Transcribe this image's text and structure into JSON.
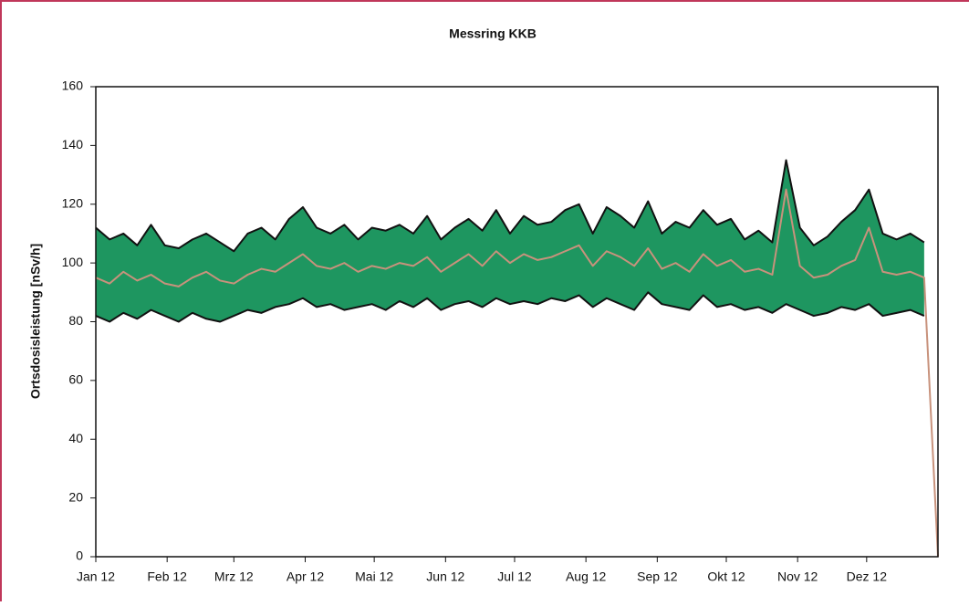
{
  "chart_data": {
    "type": "band",
    "title": "Messring KKB",
    "y_label": "Ortsdosisleistung [nSv/h]",
    "x": [
      0,
      6,
      12,
      18,
      24,
      30,
      36,
      42,
      48,
      54,
      60,
      66,
      72,
      78,
      84,
      90,
      96,
      102,
      108,
      114,
      120,
      126,
      132,
      138,
      144,
      150,
      156,
      162,
      168,
      174,
      180,
      186,
      192,
      198,
      204,
      210,
      216,
      222,
      228,
      234,
      240,
      246,
      252,
      258,
      264,
      270,
      276,
      282,
      288,
      294,
      300,
      306,
      312,
      318,
      324,
      330,
      336,
      342,
      348,
      354,
      360,
      366
    ],
    "band_color": "#1e9660",
    "series": [
      {
        "color": "#111111",
        "values": [
          112,
          108,
          110,
          106,
          113,
          106,
          105,
          108,
          110,
          107,
          104,
          110,
          112,
          108,
          115,
          119,
          112,
          110,
          113,
          108,
          112,
          111,
          113,
          110,
          116,
          108,
          112,
          115,
          111,
          118,
          110,
          116,
          113,
          114,
          118,
          120,
          110,
          119,
          116,
          112,
          121,
          110,
          114,
          112,
          118,
          113,
          115,
          108,
          111,
          107,
          135,
          112,
          106,
          109,
          114,
          118,
          125,
          110,
          108,
          110,
          107,
          null
        ]
      },
      {
        "color": "#111111",
        "values": [
          82,
          80,
          83,
          81,
          84,
          82,
          80,
          83,
          81,
          80,
          82,
          84,
          83,
          85,
          86,
          88,
          85,
          86,
          84,
          85,
          86,
          84,
          87,
          85,
          88,
          84,
          86,
          87,
          85,
          88,
          86,
          87,
          86,
          88,
          87,
          89,
          85,
          88,
          86,
          84,
          90,
          86,
          85,
          84,
          89,
          85,
          86,
          84,
          85,
          83,
          86,
          84,
          82,
          83,
          85,
          84,
          86,
          82,
          83,
          84,
          82,
          null
        ]
      },
      {
        "color": "#c8927c",
        "values": [
          95,
          93,
          97,
          94,
          96,
          93,
          92,
          95,
          97,
          94,
          93,
          96,
          98,
          97,
          100,
          103,
          99,
          98,
          100,
          97,
          99,
          98,
          100,
          99,
          102,
          97,
          100,
          103,
          99,
          104,
          100,
          103,
          101,
          102,
          104,
          106,
          99,
          104,
          102,
          99,
          105,
          98,
          100,
          97,
          103,
          99,
          101,
          97,
          98,
          96,
          125,
          99,
          95,
          96,
          99,
          101,
          112,
          97,
          96,
          97,
          95,
          0
        ]
      }
    ],
    "xlim": [
      0,
      366
    ],
    "xticks": [
      {
        "value": 0,
        "label": "Jan 12"
      },
      {
        "value": 31,
        "label": "Feb 12"
      },
      {
        "value": 60,
        "label": "Mrz 12"
      },
      {
        "value": 91,
        "label": "Apr 12"
      },
      {
        "value": 121,
        "label": "Mai 12"
      },
      {
        "value": 152,
        "label": "Jun 12"
      },
      {
        "value": 182,
        "label": "Jul 12"
      },
      {
        "value": 213,
        "label": "Aug 12"
      },
      {
        "value": 244,
        "label": "Sep 12"
      },
      {
        "value": 274,
        "label": "Okt 12"
      },
      {
        "value": 305,
        "label": "Nov 12"
      },
      {
        "value": 335,
        "label": "Dez 12"
      }
    ],
    "ylim": [
      0,
      160
    ],
    "yticks": [
      0,
      20,
      40,
      60,
      80,
      100,
      120,
      140,
      160
    ]
  }
}
